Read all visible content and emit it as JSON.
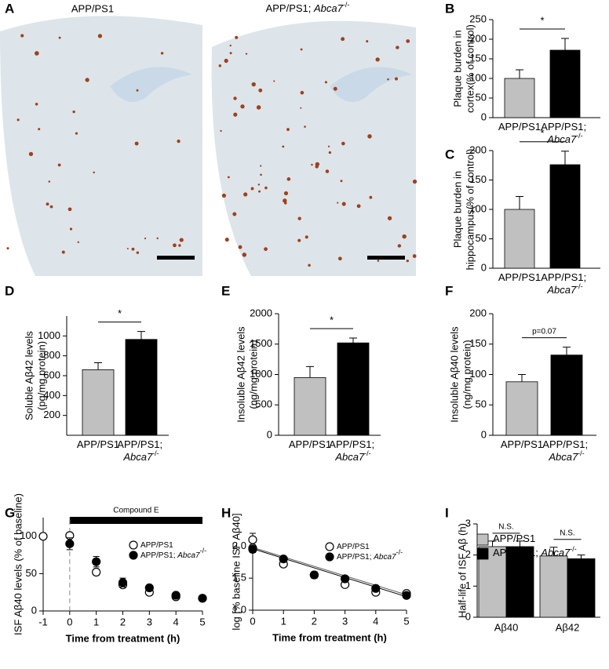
{
  "panel_a": {
    "label": "A",
    "images": [
      "APP/PS1",
      "APP/PS1; Abca7-/-"
    ]
  },
  "chart_data": [
    {
      "type": "bar",
      "label": "B",
      "ylabel": [
        "Plaque burden in",
        "cortex(% of control)"
      ],
      "categories": [
        "APP/PS1",
        "APP/PS1; Abca7-/-"
      ],
      "values": [
        100,
        172
      ],
      "errors": [
        22,
        30
      ],
      "colors": [
        "#c0c0c0",
        "#000000"
      ],
      "ylim": [
        0,
        250
      ],
      "yticks": [
        0,
        50,
        100,
        150,
        200,
        250
      ],
      "annotations": [
        "*"
      ]
    },
    {
      "type": "bar",
      "label": "C",
      "ylabel": [
        "Plaque burden in",
        "hippocampus(% of control)"
      ],
      "categories": [
        "APP/PS1",
        "APP/PS1; Abca7-/-"
      ],
      "values": [
        100,
        176
      ],
      "errors": [
        22,
        23
      ],
      "colors": [
        "#c0c0c0",
        "#000000"
      ],
      "ylim": [
        0,
        200
      ],
      "yticks": [
        0,
        50,
        100,
        150,
        200
      ],
      "annotations": [
        "*"
      ]
    },
    {
      "type": "bar",
      "label": "D",
      "ylabel": [
        "Soluble Aβ42 levels",
        "(pg/mg protein)"
      ],
      "categories": [
        "APP/PS1",
        "APP/PS1; Abca7-/-"
      ],
      "values": [
        660,
        965
      ],
      "errors": [
        70,
        80
      ],
      "colors": [
        "#c0c0c0",
        "#000000"
      ],
      "ylim": [
        0,
        1200
      ],
      "yticks": [
        200,
        400,
        600,
        800,
        1000
      ],
      "annotations": [
        "*"
      ]
    },
    {
      "type": "bar",
      "label": "E",
      "ylabel": [
        "Insoluble Aβ42 levels",
        "(ng/mg protein)"
      ],
      "categories": [
        "APP/PS1",
        "APP/PS1; Abca7-/-"
      ],
      "values": [
        950,
        1520
      ],
      "errors": [
        180,
        80
      ],
      "colors": [
        "#c0c0c0",
        "#000000"
      ],
      "ylim": [
        0,
        2000
      ],
      "yticks": [
        0,
        500,
        1000,
        1500,
        2000
      ],
      "annotations": [
        "*"
      ]
    },
    {
      "type": "bar",
      "label": "F",
      "ylabel": [
        "Insoluble Aβ40 levels",
        "(ng/mg protein)"
      ],
      "categories": [
        "APP/PS1",
        "APP/PS1; Abca7-/-"
      ],
      "values": [
        88,
        132
      ],
      "errors": [
        12,
        13
      ],
      "colors": [
        "#c0c0c0",
        "#000000"
      ],
      "ylim": [
        0,
        200
      ],
      "yticks": [
        0,
        50,
        100,
        150,
        200
      ],
      "annotations": [
        "p=0.07"
      ]
    },
    {
      "type": "scatter",
      "label": "G",
      "ylabel": [
        "ISF Aβ40 levels (% of baseline)"
      ],
      "xlabel": "Time from treatment (h)",
      "xlim": [
        -1,
        5
      ],
      "xticks": [
        -1,
        0,
        1,
        2,
        3,
        4,
        5
      ],
      "ylim": [
        0,
        125
      ],
      "yticks": [
        0,
        50,
        100
      ],
      "treatment": {
        "label": "Compound E",
        "span": [
          0,
          5
        ]
      },
      "series": [
        {
          "name": "APP/PS1",
          "marker": "open",
          "x": [
            -1,
            0,
            1,
            2,
            3,
            4,
            5
          ],
          "values": [
            100,
            101,
            52,
            35,
            25,
            19,
            17
          ],
          "errors": [
            0,
            3,
            4,
            3,
            2,
            2,
            2
          ]
        },
        {
          "name": "APP/PS1; Abca7-/-",
          "marker": "filled",
          "x": [
            0,
            1,
            2,
            3,
            4,
            5
          ],
          "values": [
            90,
            66,
            38,
            31,
            21,
            17
          ],
          "errors": [
            8,
            7,
            6,
            2,
            2,
            2
          ]
        }
      ]
    },
    {
      "type": "scatter",
      "label": "H",
      "ylabel": [
        "log [% baseline ISF Aβ40]"
      ],
      "xlabel": "Time from treatment (h)",
      "xlim": [
        0,
        5
      ],
      "xticks": [
        0,
        1,
        2,
        3,
        4,
        5
      ],
      "ylim": [
        1.0,
        2.2
      ],
      "yticks": [
        {
          "value": 1,
          "label": "1.0"
        },
        1.5,
        {
          "value": 2,
          "label": "2.0"
        }
      ],
      "series": [
        {
          "name": "APP/PS1",
          "marker": "open",
          "x": [
            0,
            0,
            1,
            2,
            3,
            4,
            5
          ],
          "values": [
            2.1,
            1.97,
            1.72,
            1.55,
            1.4,
            1.28,
            1.26
          ],
          "errors": [
            0.1,
            0.05,
            0.03,
            0.05,
            0.03,
            0.04,
            0.03
          ],
          "fit": {
            "x": [
              0,
              5
            ],
            "values": [
              1.98,
              1.24
            ]
          }
        },
        {
          "name": "APP/PS1; Abca7-/-",
          "marker": "filled",
          "x": [
            0,
            1,
            2,
            3,
            4,
            5
          ],
          "values": [
            1.95,
            1.8,
            1.55,
            1.49,
            1.34,
            1.23
          ],
          "errors": [
            0.05,
            0.04,
            0.05,
            0.04,
            0.04,
            0.03
          ],
          "fit": {
            "x": [
              0,
              5
            ],
            "values": [
              1.96,
              1.21
            ]
          }
        }
      ]
    },
    {
      "type": "groupedbar",
      "label": "I",
      "ylabel": [
        "Half-life of ISF Aβ (h)"
      ],
      "categories": [
        "Aβ40",
        "Aβ42"
      ],
      "ylim": [
        0,
        3
      ],
      "yticks": [
        0,
        1,
        2,
        3
      ],
      "annotations": [
        "N.S.",
        "N.S."
      ],
      "legend": "upper left",
      "series": [
        {
          "name": "APP/PS1",
          "color": "#c0c0c0",
          "values": [
            2.27,
            1.97
          ],
          "errors": [
            0.18,
            0.28
          ]
        },
        {
          "name": "APP/PS1; Abca7-/-",
          "color": "#000000",
          "values": [
            2.27,
            1.88
          ],
          "errors": [
            0.18,
            0.12
          ]
        }
      ]
    }
  ]
}
